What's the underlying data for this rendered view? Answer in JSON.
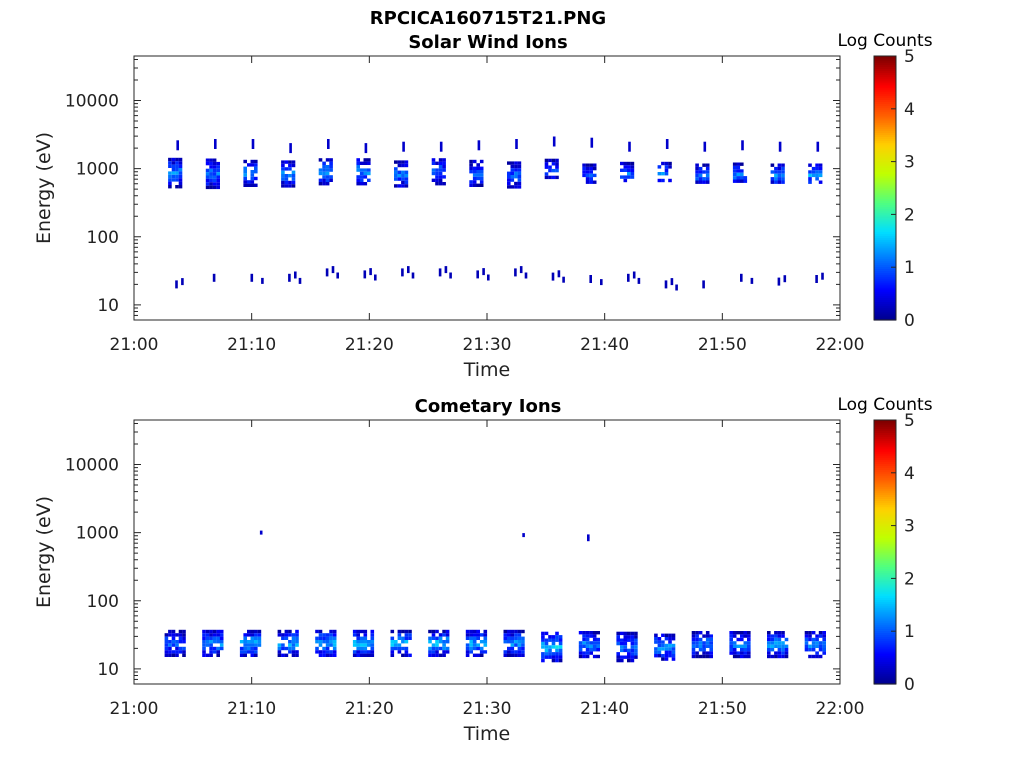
{
  "figure_title": "RPCICA160715T21.PNG",
  "colors": {
    "axis": "#262626",
    "colormap": [
      "#00008f",
      "#0000ff",
      "#0070ff",
      "#00dfff",
      "#50ff80",
      "#c0ff00",
      "#ffd000",
      "#ff6000",
      "#ff0000",
      "#800000"
    ]
  },
  "chart_data": [
    {
      "type": "heatmap",
      "title": "Solar Wind Ions",
      "xlabel": "Time",
      "ylabel": "Energy (eV)",
      "x_tick_labels": [
        "21:00",
        "21:10",
        "21:20",
        "21:30",
        "21:40",
        "21:50",
        "22:00"
      ],
      "x_range_minutes": [
        0,
        60
      ],
      "y_scale": "log",
      "y_range": [
        6,
        45000
      ],
      "y_tick_labels": [
        "10",
        "100",
        "1000",
        "10000"
      ],
      "colorbar": {
        "label": "Log Counts",
        "range": [
          0,
          5
        ],
        "tick_labels": [
          "0",
          "1",
          "2",
          "3",
          "4",
          "5"
        ]
      },
      "sweeps": [
        {
          "t": 3.5,
          "E": 900,
          "dE": 1.6,
          "v": 1.2,
          "lowE": 20,
          "hiE": 2200
        },
        {
          "t": 6.7,
          "E": 880,
          "dE": 1.6,
          "v": 1.1,
          "lowE": 25,
          "hiE": 2300
        },
        {
          "t": 9.9,
          "E": 900,
          "dE": 1.5,
          "v": 1.3,
          "lowE": 25,
          "hiE": 2300
        },
        {
          "t": 13.1,
          "E": 880,
          "dE": 1.5,
          "v": 1.2,
          "lowE": 25,
          "hiE": 2000
        },
        {
          "t": 16.3,
          "E": 950,
          "dE": 1.5,
          "v": 1.4,
          "lowE": 30,
          "hiE": 2300
        },
        {
          "t": 19.5,
          "E": 950,
          "dE": 1.5,
          "v": 1.3,
          "lowE": 28,
          "hiE": 2000
        },
        {
          "t": 22.7,
          "E": 880,
          "dE": 1.5,
          "v": 1.2,
          "lowE": 30,
          "hiE": 2100
        },
        {
          "t": 25.9,
          "E": 950,
          "dE": 1.5,
          "v": 1.1,
          "lowE": 30,
          "hiE": 2100
        },
        {
          "t": 29.1,
          "E": 900,
          "dE": 1.5,
          "v": 1.0,
          "lowE": 28,
          "hiE": 2200
        },
        {
          "t": 32.3,
          "E": 850,
          "dE": 1.5,
          "v": 1.0,
          "lowE": 30,
          "hiE": 2300
        },
        {
          "t": 35.5,
          "E": 1000,
          "dE": 1.4,
          "v": 0.8,
          "lowE": 26,
          "hiE": 2500
        },
        {
          "t": 38.7,
          "E": 850,
          "dE": 1.4,
          "v": 0.9,
          "lowE": 24,
          "hiE": 2400
        },
        {
          "t": 41.9,
          "E": 900,
          "dE": 1.4,
          "v": 1.1,
          "lowE": 25,
          "hiE": 2100
        },
        {
          "t": 45.1,
          "E": 900,
          "dE": 1.4,
          "v": 1.2,
          "lowE": 20,
          "hiE": 2300
        },
        {
          "t": 48.3,
          "E": 850,
          "dE": 1.4,
          "v": 1.1,
          "lowE": 20,
          "hiE": 2100
        },
        {
          "t": 51.5,
          "E": 880,
          "dE": 1.4,
          "v": 1.2,
          "lowE": 25,
          "hiE": 2200
        },
        {
          "t": 54.7,
          "E": 850,
          "dE": 1.4,
          "v": 1.3,
          "lowE": 22,
          "hiE": 2100
        },
        {
          "t": 57.9,
          "E": 850,
          "dE": 1.4,
          "v": 1.3,
          "lowE": 24,
          "hiE": 2100
        }
      ]
    },
    {
      "type": "heatmap",
      "title": "Cometary Ions",
      "xlabel": "Time",
      "ylabel": "Energy (eV)",
      "x_tick_labels": [
        "21:00",
        "21:10",
        "21:20",
        "21:30",
        "21:40",
        "21:50",
        "22:00"
      ],
      "x_range_minutes": [
        0,
        60
      ],
      "y_scale": "log",
      "y_range": [
        6,
        45000
      ],
      "y_tick_labels": [
        "10",
        "100",
        "1000",
        "10000"
      ],
      "colorbar": {
        "label": "Log Counts",
        "range": [
          0,
          5
        ],
        "tick_labels": [
          "0",
          "1",
          "2",
          "3",
          "4",
          "5"
        ]
      },
      "sweeps": [
        {
          "t": 3.5,
          "E": 25,
          "dE": 1.5,
          "v": 1.0
        },
        {
          "t": 6.7,
          "E": 25,
          "dE": 1.5,
          "v": 1.3
        },
        {
          "t": 9.9,
          "E": 25,
          "dE": 1.5,
          "v": 1.5
        },
        {
          "t": 13.1,
          "E": 25,
          "dE": 1.5,
          "v": 1.4
        },
        {
          "t": 16.3,
          "E": 25,
          "dE": 1.5,
          "v": 1.5
        },
        {
          "t": 19.5,
          "E": 25,
          "dE": 1.5,
          "v": 1.5
        },
        {
          "t": 22.7,
          "E": 25,
          "dE": 1.5,
          "v": 1.5
        },
        {
          "t": 25.9,
          "E": 25,
          "dE": 1.5,
          "v": 1.5
        },
        {
          "t": 29.1,
          "E": 25,
          "dE": 1.5,
          "v": 1.4
        },
        {
          "t": 32.3,
          "E": 25,
          "dE": 1.5,
          "v": 1.3
        },
        {
          "t": 35.5,
          "E": 22,
          "dE": 1.6,
          "v": 1.5
        },
        {
          "t": 38.7,
          "E": 24,
          "dE": 1.5,
          "v": 1.3
        },
        {
          "t": 41.9,
          "E": 22,
          "dE": 1.6,
          "v": 1.1
        },
        {
          "t": 45.1,
          "E": 22,
          "dE": 1.5,
          "v": 1.3
        },
        {
          "t": 48.3,
          "E": 24,
          "dE": 1.5,
          "v": 1.2
        },
        {
          "t": 51.5,
          "E": 24,
          "dE": 1.5,
          "v": 1.2
        },
        {
          "t": 54.7,
          "E": 24,
          "dE": 1.5,
          "v": 1.3
        },
        {
          "t": 57.9,
          "E": 24,
          "dE": 1.5,
          "v": 1.2
        }
      ],
      "isolated_points": [
        {
          "t": 10.7,
          "E": 1000,
          "v": 0.3
        },
        {
          "t": 33.0,
          "E": 920,
          "v": 0.3
        },
        {
          "t": 38.5,
          "E": 880,
          "v": 0.3
        },
        {
          "t": 38.5,
          "E": 800,
          "v": 0.3
        }
      ]
    }
  ]
}
